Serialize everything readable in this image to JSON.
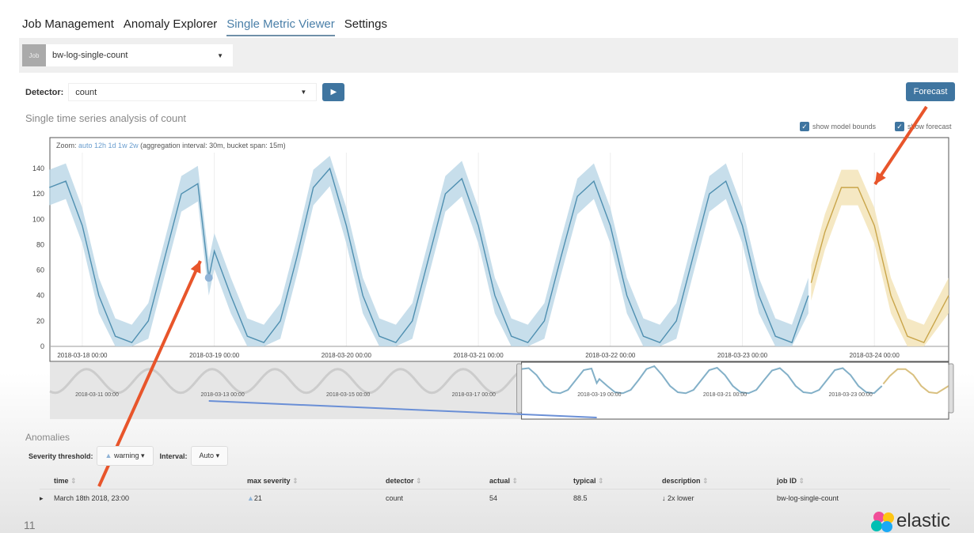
{
  "tabs": [
    {
      "label": "Job Management"
    },
    {
      "label": "Anomaly Explorer"
    },
    {
      "label": "Single Metric Viewer",
      "active": true
    },
    {
      "label": "Settings"
    }
  ],
  "job": {
    "label": "Job",
    "value": "bw-log-single-count"
  },
  "detector": {
    "label": "Detector:",
    "value": "count"
  },
  "forecast_label": "Forecast",
  "title": "Single time series analysis of count",
  "checkboxes": {
    "model_bounds": "show model bounds",
    "forecast": "show forecast"
  },
  "zoom": {
    "label": "Zoom:",
    "options": "auto 12h 1d 1w 2w",
    "info": "(aggregation interval: 30m, bucket span: 15m)"
  },
  "colors": {
    "actual": "#4f8fb0",
    "bounds": "#b9d6e6",
    "forecast": "#c9a54a",
    "forecast_bounds": "#f3e2b4",
    "anomaly": "#8fb3d6",
    "accent": "#3f75a0",
    "arrow": "#e8552b"
  },
  "chart_data": {
    "type": "line",
    "ylim": [
      0,
      150
    ],
    "yticks": [
      0,
      20,
      40,
      60,
      80,
      100,
      120,
      140
    ],
    "xlim": [
      "2018-03-17 18:15",
      "2018-03-24 13:30"
    ],
    "xticks": [
      "2018-03-18 00:00",
      "2018-03-19 00:00",
      "2018-03-20 00:00",
      "2018-03-21 00:00",
      "2018-03-22 00:00",
      "2018-03-23 00:00",
      "2018-03-24 00:00"
    ],
    "actual": [
      [
        "2018-03-17 18:00",
        125
      ],
      [
        "2018-03-17 21:00",
        130
      ],
      [
        "2018-03-18 00:00",
        95
      ],
      [
        "2018-03-18 03:00",
        40
      ],
      [
        "2018-03-18 06:00",
        8
      ],
      [
        "2018-03-18 09:00",
        3
      ],
      [
        "2018-03-18 12:00",
        20
      ],
      [
        "2018-03-18 15:00",
        70
      ],
      [
        "2018-03-18 18:00",
        120
      ],
      [
        "2018-03-18 21:00",
        128
      ],
      [
        "2018-03-18 23:00",
        54
      ],
      [
        "2018-03-19 00:00",
        75
      ],
      [
        "2018-03-19 03:00",
        40
      ],
      [
        "2018-03-19 06:00",
        8
      ],
      [
        "2018-03-19 09:00",
        3
      ],
      [
        "2018-03-19 12:00",
        20
      ],
      [
        "2018-03-19 15:00",
        70
      ],
      [
        "2018-03-19 18:00",
        125
      ],
      [
        "2018-03-19 21:00",
        140
      ],
      [
        "2018-03-20 00:00",
        95
      ],
      [
        "2018-03-20 03:00",
        40
      ],
      [
        "2018-03-20 06:00",
        8
      ],
      [
        "2018-03-20 09:00",
        3
      ],
      [
        "2018-03-20 12:00",
        20
      ],
      [
        "2018-03-20 15:00",
        70
      ],
      [
        "2018-03-20 18:00",
        120
      ],
      [
        "2018-03-20 21:00",
        132
      ],
      [
        "2018-03-21 00:00",
        95
      ],
      [
        "2018-03-21 03:00",
        40
      ],
      [
        "2018-03-21 06:00",
        8
      ],
      [
        "2018-03-21 09:00",
        3
      ],
      [
        "2018-03-21 12:00",
        20
      ],
      [
        "2018-03-21 15:00",
        70
      ],
      [
        "2018-03-21 18:00",
        118
      ],
      [
        "2018-03-21 21:00",
        130
      ],
      [
        "2018-03-22 00:00",
        95
      ],
      [
        "2018-03-22 03:00",
        40
      ],
      [
        "2018-03-22 06:00",
        8
      ],
      [
        "2018-03-22 09:00",
        3
      ],
      [
        "2018-03-22 12:00",
        20
      ],
      [
        "2018-03-22 15:00",
        70
      ],
      [
        "2018-03-22 18:00",
        120
      ],
      [
        "2018-03-22 21:00",
        130
      ],
      [
        "2018-03-23 00:00",
        95
      ],
      [
        "2018-03-23 03:00",
        40
      ],
      [
        "2018-03-23 06:00",
        8
      ],
      [
        "2018-03-23 09:00",
        3
      ],
      [
        "2018-03-23 12:00",
        40
      ]
    ],
    "forecast": [
      [
        "2018-03-23 12:30",
        50
      ],
      [
        "2018-03-23 15:00",
        90
      ],
      [
        "2018-03-23 18:00",
        125
      ],
      [
        "2018-03-23 21:00",
        125
      ],
      [
        "2018-03-24 00:00",
        95
      ],
      [
        "2018-03-24 03:00",
        40
      ],
      [
        "2018-03-24 06:00",
        8
      ],
      [
        "2018-03-24 09:00",
        3
      ],
      [
        "2018-03-24 13:30",
        40
      ]
    ],
    "anomaly": {
      "time": "2018-03-18 23:00",
      "value": 54
    },
    "context": {
      "xlim": [
        "2018-03-10 06:00",
        "2018-03-24 13:30"
      ],
      "xticks": [
        "2018-03-11 00:00",
        "2018-03-13 00:00",
        "2018-03-15 00:00",
        "2018-03-17 00:00",
        "2018-03-19 00:00",
        "2018-03-21 00:00",
        "2018-03-23 00:00"
      ],
      "selection": [
        "2018-03-17 18:15",
        "2018-03-24 13:30"
      ]
    }
  },
  "anomalies": {
    "title": "Anomalies",
    "severity_label": "Severity threshold:",
    "severity_value": "warning",
    "interval_label": "Interval:",
    "interval_value": "Auto",
    "columns": [
      "time",
      "max severity",
      "detector",
      "actual",
      "typical",
      "description",
      "job ID"
    ],
    "rows": [
      {
        "time": "March 18th 2018, 23:00",
        "severity": "21",
        "detector": "count",
        "actual": "54",
        "typical": "88.5",
        "description": "2x lower",
        "job_id": "bw-log-single-count"
      }
    ]
  },
  "page_number": "11",
  "logo_text": "elastic"
}
